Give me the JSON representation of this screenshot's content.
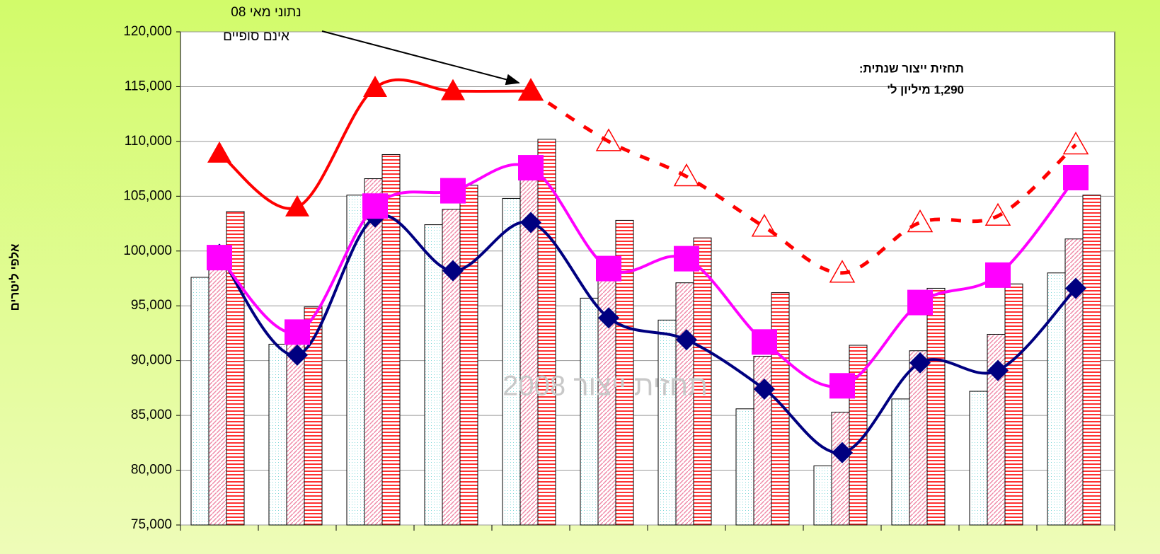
{
  "chart_data": {
    "type": "bar-line",
    "ylabel": "אלפי ליטרים",
    "watermark": "תחזית ייצור 2008",
    "annotations": [
      "נתוני מאי 08",
      "אינם סופיים",
      "תחזית ייצור שנתית:",
      "1,290 מיליון ל'"
    ],
    "categories": [
      null,
      null,
      null,
      null,
      null,
      null,
      null,
      null,
      null,
      null,
      null,
      null
    ],
    "ylim": [
      75000,
      120000
    ],
    "yticks": [
      {
        "value": 75000,
        "label": "75,000"
      },
      {
        "value": 80000,
        "label": "80,000"
      },
      {
        "value": 85000,
        "label": "85,000"
      },
      {
        "value": 90000,
        "label": "90,000"
      },
      {
        "value": 95000,
        "label": "95,000"
      },
      {
        "value": 100000,
        "label": "100,000"
      },
      {
        "value": 105000,
        "label": "105,000"
      },
      {
        "value": 110000,
        "label": "110,000"
      },
      {
        "value": 115000,
        "label": "115,000"
      },
      {
        "value": 120000,
        "label": "120,000"
      }
    ],
    "grid": true,
    "series": [
      {
        "kind": "bar",
        "pattern": "dots",
        "color": "#7fd8d8",
        "values": [
          97600,
          91500,
          105100,
          102400,
          104800,
          95700,
          93700,
          85600,
          80400,
          86500,
          87200,
          98000
        ]
      },
      {
        "kind": "bar",
        "pattern": "diagonal",
        "color": "#f08aa8",
        "values": [
          100000,
          92000,
          106600,
          103800,
          107000,
          98000,
          97100,
          90400,
          85300,
          90900,
          92400,
          101100
        ]
      },
      {
        "kind": "bar",
        "pattern": "horizontal",
        "color": "#ff3030",
        "values": [
          103600,
          94900,
          108800,
          106000,
          110200,
          102800,
          101200,
          96200,
          91400,
          96600,
          97000,
          105100
        ]
      },
      {
        "kind": "line",
        "marker": "diamond",
        "color": "#000080",
        "dashed": false,
        "values": [
          99700,
          90500,
          103100,
          98200,
          102600,
          93900,
          91900,
          87400,
          81600,
          89800,
          89100,
          96600
        ]
      },
      {
        "kind": "line",
        "marker": "square",
        "color": "#ff00ff",
        "dashed": false,
        "values": [
          99400,
          92600,
          104100,
          105500,
          107600,
          98400,
          99300,
          91700,
          87700,
          95300,
          97800,
          106700
        ]
      },
      {
        "kind": "line",
        "marker": "triangle-open",
        "color": "#ff0000",
        "dashed": true,
        "values": [
          null,
          null,
          null,
          null,
          114600,
          110000,
          106800,
          102200,
          98000,
          102600,
          103200,
          109700
        ]
      },
      {
        "kind": "line",
        "marker": "triangle",
        "color": "#ff0000",
        "dashed": false,
        "values": [
          108900,
          104000,
          114900,
          114600,
          114600,
          null,
          null,
          null,
          null,
          null,
          null,
          null
        ]
      }
    ]
  }
}
